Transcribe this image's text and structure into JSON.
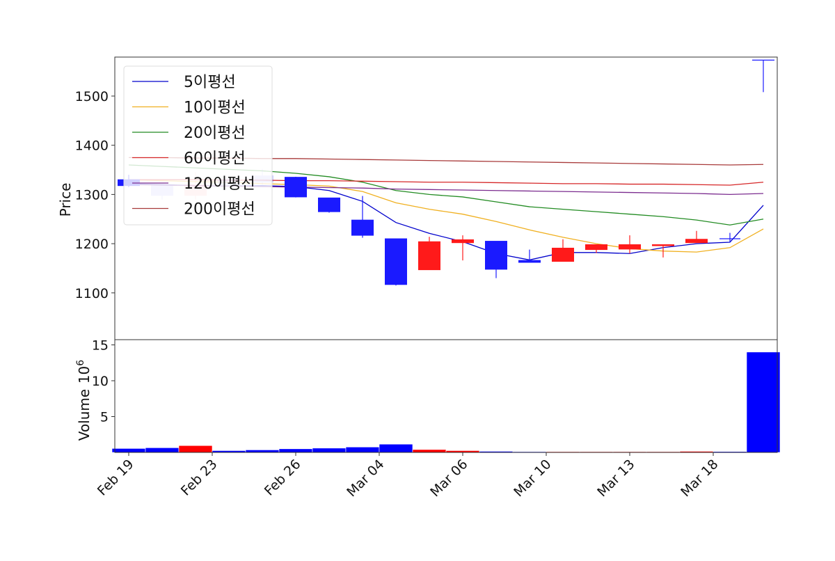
{
  "chart_data": [
    {
      "type": "candlestick",
      "title": "",
      "xlabel": "",
      "ylabel": "Price",
      "ylim": [
        1055,
        1580
      ],
      "yticks": [
        1100,
        1200,
        1300,
        1400,
        1500
      ],
      "grid": false,
      "legend_position": "upper left",
      "x_tick_labels": [
        "Feb 19",
        "Feb 23",
        "Feb 26",
        "Mar 04",
        "Mar 06",
        "Mar 10",
        "Mar 13",
        "Mar 18"
      ],
      "up_color": "#ff0000",
      "down_color": "#0000ff",
      "candles": [
        {
          "i": 0,
          "open": 1330,
          "close": 1318,
          "high": 1340,
          "low": 1315,
          "dir": "down",
          "faded": false
        },
        {
          "i": 1,
          "open": 1318,
          "close": 1298,
          "high": 1320,
          "low": 1290,
          "dir": "down",
          "faded": true
        },
        {
          "i": 2,
          "open": 1298,
          "close": 1320,
          "high": 1345,
          "low": 1290,
          "dir": "up",
          "faded": true
        },
        {
          "i": 3,
          "open": 1330,
          "close": 1320,
          "high": 1335,
          "low": 1318,
          "dir": "down",
          "faded": true
        },
        {
          "i": 4,
          "open": 1338,
          "close": 1325,
          "high": 1352,
          "low": 1320,
          "dir": "down",
          "faded": true
        },
        {
          "i": 5,
          "open": 1335,
          "close": 1295,
          "high": 1336,
          "low": 1294,
          "dir": "down",
          "faded": false
        },
        {
          "i": 6,
          "open": 1293,
          "close": 1265,
          "high": 1293,
          "low": 1263,
          "dir": "down",
          "faded": false
        },
        {
          "i": 7,
          "open": 1248,
          "close": 1217,
          "high": 1297,
          "low": 1212,
          "dir": "down",
          "faded": false
        },
        {
          "i": 8,
          "open": 1210,
          "close": 1117,
          "high": 1210,
          "low": 1115,
          "dir": "down",
          "faded": false
        },
        {
          "i": 9,
          "open": 1147,
          "close": 1204,
          "high": 1214,
          "low": 1147,
          "dir": "up",
          "faded": false
        },
        {
          "i": 10,
          "open": 1202,
          "close": 1208,
          "high": 1217,
          "low": 1166,
          "dir": "up",
          "faded": false
        },
        {
          "i": 11,
          "open": 1205,
          "close": 1148,
          "high": 1205,
          "low": 1130,
          "dir": "down",
          "faded": false
        },
        {
          "i": 12,
          "open": 1166,
          "close": 1162,
          "high": 1188,
          "low": 1162,
          "dir": "down",
          "faded": false
        },
        {
          "i": 13,
          "open": 1164,
          "close": 1191,
          "high": 1209,
          "low": 1164,
          "dir": "up",
          "faded": false
        },
        {
          "i": 14,
          "open": 1188,
          "close": 1198,
          "high": 1198,
          "low": 1181,
          "dir": "up",
          "faded": false
        },
        {
          "i": 15,
          "open": 1189,
          "close": 1198,
          "high": 1217,
          "low": 1180,
          "dir": "up",
          "faded": false
        },
        {
          "i": 16,
          "open": 1196,
          "close": 1198,
          "high": 1198,
          "low": 1172,
          "dir": "up",
          "faded": false
        },
        {
          "i": 17,
          "open": 1202,
          "close": 1209,
          "high": 1226,
          "low": 1202,
          "dir": "up",
          "faded": false
        },
        {
          "i": 18,
          "open": 1210,
          "close": 1210,
          "high": 1222,
          "low": 1203,
          "dir": "down",
          "faded": false
        },
        {
          "i": 19,
          "open": 1573,
          "close": 1573,
          "high": 1573,
          "low": 1508,
          "dir": "down",
          "faded": false
        }
      ],
      "series": [
        {
          "name": "5이평선",
          "color": "#0000cc",
          "values": [
            1322,
            1320,
            1318,
            1317,
            1318,
            1316,
            1308,
            1286,
            1243,
            1221,
            1204,
            1180,
            1167,
            1182,
            1182,
            1180,
            1192,
            1200,
            1203,
            1278
          ]
        },
        {
          "name": "10이평선",
          "color": "#f0b020",
          "values": [
            1330,
            1328,
            1326,
            1325,
            1322,
            1320,
            1317,
            1306,
            1283,
            1270,
            1260,
            1245,
            1228,
            1213,
            1200,
            1190,
            1185,
            1183,
            1192,
            1230
          ]
        },
        {
          "name": "20이평선",
          "color": "#228b22",
          "values": [
            1360,
            1357,
            1354,
            1351,
            1348,
            1343,
            1336,
            1325,
            1308,
            1300,
            1295,
            1285,
            1275,
            1270,
            1265,
            1260,
            1255,
            1248,
            1238,
            1250
          ]
        },
        {
          "name": "60이평선",
          "color": "#d62728",
          "values": [
            1330,
            1330,
            1330,
            1329,
            1329,
            1328,
            1328,
            1327,
            1326,
            1325,
            1325,
            1324,
            1323,
            1322,
            1322,
            1321,
            1321,
            1320,
            1319,
            1325
          ]
        },
        {
          "name": "120이평선",
          "color": "#7b2c8f",
          "values": [
            1320,
            1319,
            1318,
            1317,
            1316,
            1315,
            1314,
            1313,
            1311,
            1310,
            1309,
            1308,
            1307,
            1306,
            1305,
            1304,
            1303,
            1302,
            1300,
            1302
          ]
        },
        {
          "name": "200이평선",
          "color": "#a83a3a",
          "values": [
            1375,
            1375,
            1374,
            1374,
            1373,
            1373,
            1372,
            1371,
            1370,
            1369,
            1368,
            1367,
            1366,
            1365,
            1364,
            1363,
            1362,
            1361,
            1360,
            1361
          ]
        }
      ]
    },
    {
      "type": "bar",
      "title": "",
      "xlabel": "",
      "ylabel": "Volume",
      "ylabel_exponent": "10^6",
      "ylim": [
        0,
        15.5
      ],
      "yticks": [
        5,
        10,
        15
      ],
      "grid": false,
      "values": [
        0.55,
        0.65,
        0.95,
        0.25,
        0.35,
        0.5,
        0.6,
        0.75,
        1.15,
        0.4,
        0.25,
        0.15,
        0.1,
        0.1,
        0.1,
        0.1,
        0.1,
        0.15,
        0.12,
        14.0
      ],
      "colors": [
        "down",
        "down",
        "up",
        "down",
        "down",
        "down",
        "down",
        "down",
        "down",
        "up",
        "up",
        "down",
        "down",
        "up",
        "up",
        "up",
        "up",
        "up",
        "down",
        "down"
      ]
    }
  ]
}
